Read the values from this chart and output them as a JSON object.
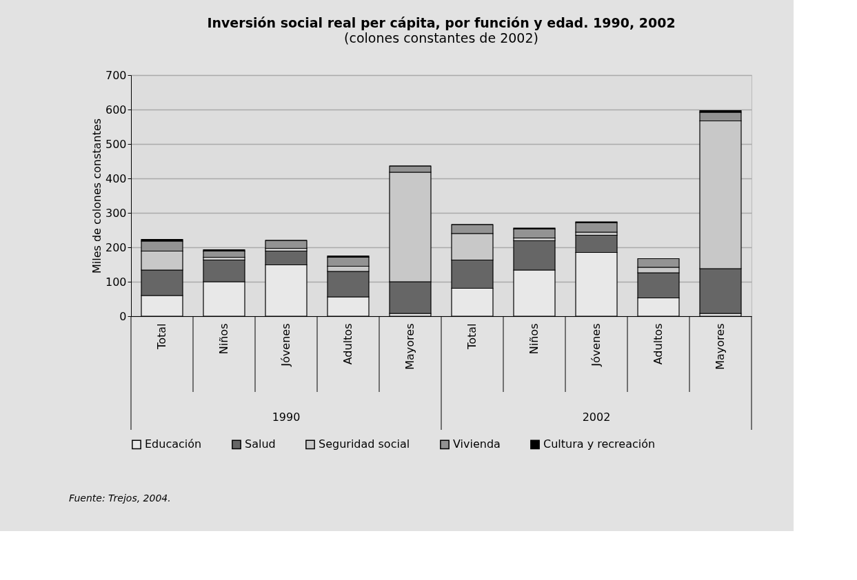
{
  "chart_data": {
    "type": "bar",
    "title": "Inversión social real per cápita, por función y edad. 1990, 2002",
    "subtitle": "(colones constantes de 2002)",
    "ylabel": "Miles de colones constantes",
    "categories": [
      "Total",
      "Niños",
      "Jóvenes",
      "Adultos",
      "Mayores",
      "Total",
      "Niños",
      "Jóvenes",
      "Adultos",
      "Mayores"
    ],
    "stacked": true,
    "series": [
      {
        "name": "Educación",
        "color": "#e8e8e8",
        "values": [
          60,
          100,
          149,
          56,
          8,
          81,
          134,
          185,
          53,
          8
        ]
      },
      {
        "name": "Salud",
        "color": "#666666",
        "values": [
          74,
          63,
          40,
          74,
          92,
          82,
          85,
          50,
          73,
          130
        ]
      },
      {
        "name": "Seguridad social",
        "color": "#c8c8c8",
        "values": [
          55,
          8,
          8,
          15,
          318,
          77,
          8,
          9,
          16,
          429
        ]
      },
      {
        "name": "Vivienda",
        "color": "#939393",
        "values": [
          29,
          18,
          23,
          26,
          18,
          26,
          26,
          27,
          25,
          25
        ]
      },
      {
        "name": "Cultura y recreación",
        "color": "#000000",
        "values": [
          5,
          4,
          0,
          4,
          0,
          0,
          3,
          3,
          0,
          5
        ]
      }
    ],
    "ylim": [
      0,
      700
    ],
    "yticks": [
      0,
      100,
      200,
      300,
      400,
      500,
      600,
      700
    ],
    "grid": "y",
    "legend": "bottom",
    "annotations": [
      "1990",
      "2002",
      "Fuente: Trejos, 2004."
    ]
  }
}
